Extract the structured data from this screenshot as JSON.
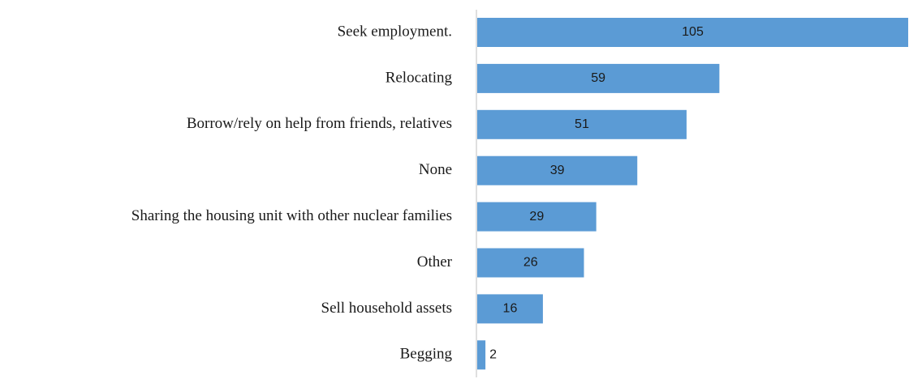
{
  "chart_data": {
    "type": "bar",
    "orientation": "horizontal",
    "categories": [
      "Seek employment.",
      "Relocating",
      "Borrow/rely on help from friends, relatives",
      "None",
      "Sharing the housing unit with other nuclear families",
      "Other",
      "Sell household assets",
      "Begging"
    ],
    "values": [
      105,
      59,
      51,
      39,
      29,
      26,
      16,
      2
    ],
    "color": "#5b9bd5"
  }
}
